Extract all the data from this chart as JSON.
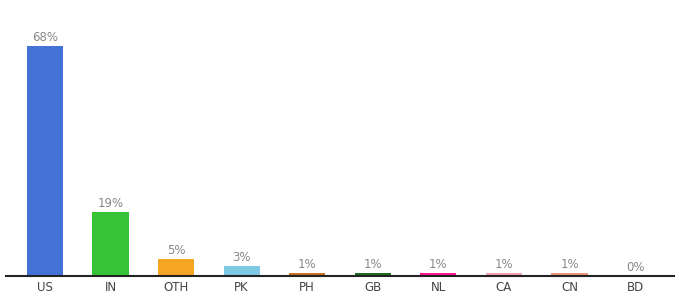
{
  "categories": [
    "US",
    "IN",
    "OTH",
    "PK",
    "PH",
    "GB",
    "NL",
    "CA",
    "CN",
    "BD"
  ],
  "values": [
    68,
    19,
    5,
    3,
    1,
    1,
    1,
    1,
    1,
    0
  ],
  "labels": [
    "68%",
    "19%",
    "5%",
    "3%",
    "1%",
    "1%",
    "1%",
    "1%",
    "1%",
    "0%"
  ],
  "bar_colors": [
    "#4472D4",
    "#36C436",
    "#F5A623",
    "#7EC8E3",
    "#C87020",
    "#1E6B1E",
    "#FF1493",
    "#F4A0B0",
    "#E8967A",
    "#CCCCCC"
  ],
  "background_color": "#ffffff",
  "label_color": "#888888",
  "ylim": [
    0,
    80
  ],
  "figwidth": 6.8,
  "figheight": 3.0,
  "dpi": 100,
  "xlabel_fontsize": 8.5,
  "label_fontsize": 8.5
}
